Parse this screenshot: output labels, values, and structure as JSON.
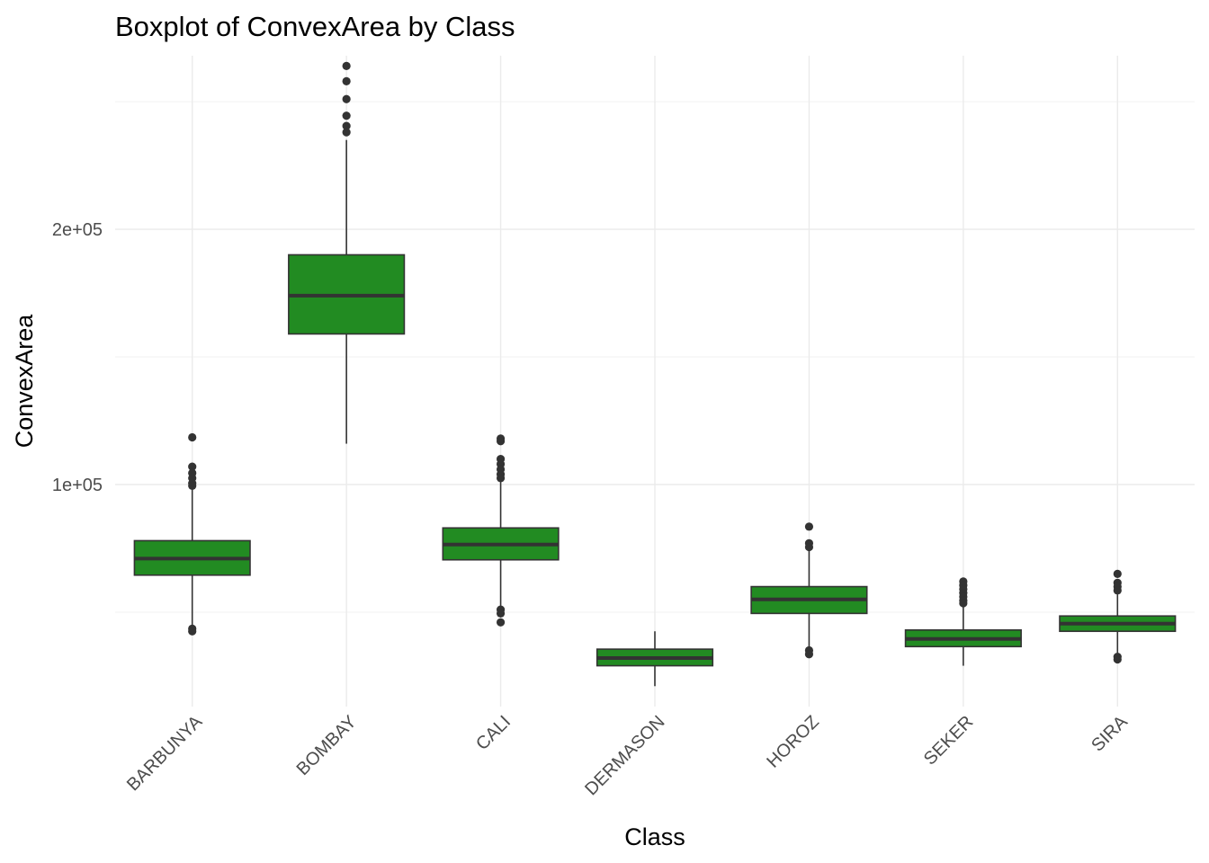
{
  "chart_data": {
    "type": "boxplot",
    "title": "Boxplot of ConvexArea by Class",
    "xlabel": "Class",
    "ylabel": "ConvexArea",
    "ylim": [
      13000,
      268000
    ],
    "y_ticks": [
      {
        "value": 100000,
        "label": "1e+05"
      },
      {
        "value": 200000,
        "label": "2e+05"
      }
    ],
    "y_minor_ticks": [
      50000,
      150000,
      250000
    ],
    "box_color": "#228b22",
    "line_color": "#333333",
    "grid": true,
    "categories": [
      "BARBUNYA",
      "BOMBAY",
      "CALI",
      "DERMASON",
      "HOROZ",
      "SEKER",
      "SIRA"
    ],
    "boxes": [
      {
        "category": "BARBUNYA",
        "lower_whisker": 44000,
        "q1": 64500,
        "median": 71000,
        "q3": 78000,
        "upper_whisker": 98500,
        "outliers": [
          118500,
          107000,
          104500,
          102500,
          100500,
          99500,
          43500,
          42500
        ]
      },
      {
        "category": "BOMBAY",
        "lower_whisker": 116000,
        "q1": 159000,
        "median": 174000,
        "q3": 190000,
        "upper_whisker": 235000,
        "outliers": [
          264000,
          258000,
          251000,
          244500,
          240500,
          238000
        ]
      },
      {
        "category": "CALI",
        "lower_whisker": 52000,
        "q1": 70500,
        "median": 76500,
        "q3": 83000,
        "upper_whisker": 101500,
        "outliers": [
          118000,
          117000,
          110000,
          108000,
          106000,
          104000,
          102500,
          51000,
          49500,
          46000
        ]
      },
      {
        "category": "DERMASON",
        "lower_whisker": 21000,
        "q1": 29000,
        "median": 32000,
        "q3": 35500,
        "upper_whisker": 42500,
        "outliers": []
      },
      {
        "category": "HOROZ",
        "lower_whisker": 36000,
        "q1": 49500,
        "median": 55000,
        "q3": 60000,
        "upper_whisker": 74500,
        "outliers": [
          83500,
          77000,
          75500,
          35000,
          33500
        ]
      },
      {
        "category": "SEKER",
        "lower_whisker": 29000,
        "q1": 36500,
        "median": 39500,
        "q3": 43000,
        "upper_whisker": 52500,
        "outliers": [
          62000,
          60500,
          59000,
          57500,
          56000,
          54500,
          53500
        ]
      },
      {
        "category": "SIRA",
        "lower_whisker": 34000,
        "q1": 42500,
        "median": 45500,
        "q3": 48500,
        "upper_whisker": 57000,
        "outliers": [
          65000,
          61500,
          60000,
          58500,
          32500,
          31500
        ]
      }
    ]
  }
}
